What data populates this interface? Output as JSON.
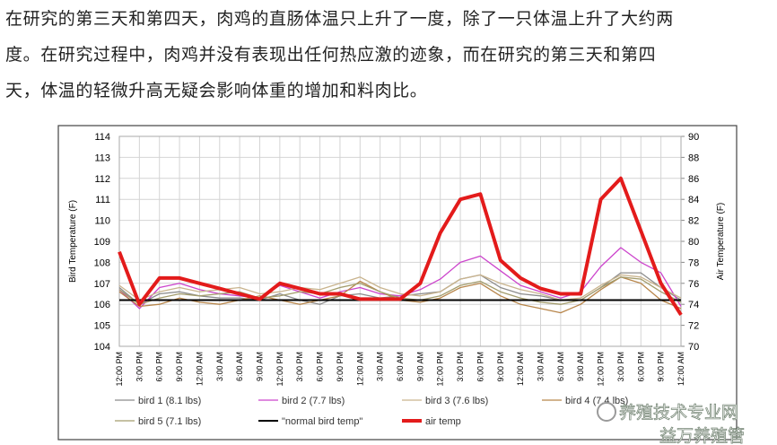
{
  "text": {
    "lines": [
      "在研究的第三天和第四天，肉鸡的直肠体温只上升了一度，除了一只体温上升了大约两",
      "度。在研究过程中，肉鸡并没有表现出任何热应激的迹象，而在研究的第三天和第四",
      "天，体温的轻微升高无疑会影响体重的增加和料肉比。"
    ]
  },
  "chart_data": {
    "type": "line",
    "y_label": "Bird Temperature (F)",
    "y2_label": "Air Temperature (F)",
    "categories": [
      "12:00 PM",
      "3:00 PM",
      "6:00 PM",
      "9:00 PM",
      "12:00 AM",
      "3:00 AM",
      "6:00 AM",
      "9:00 AM",
      "12:00 PM",
      "3:00 PM",
      "6:00 PM",
      "9:00 PM",
      "12:00 AM",
      "3:00 AM",
      "6:00 AM",
      "9:00 AM",
      "12:00 PM",
      "3:00 PM",
      "6:00 PM",
      "9:00 PM",
      "12:00 AM",
      "3:00 AM",
      "6:00 AM",
      "9:00 AM",
      "12:00 PM",
      "3:00 PM",
      "6:00 PM",
      "9:00 PM",
      "12:00 AM"
    ],
    "ylim": [
      104,
      114
    ],
    "yticks": [
      104,
      105,
      106,
      107,
      108,
      109,
      110,
      111,
      112,
      113,
      114
    ],
    "y2lim": [
      70,
      90
    ],
    "y2ticks": [
      70,
      72,
      74,
      76,
      78,
      80,
      82,
      84,
      86,
      88,
      90
    ],
    "series": [
      {
        "name": "bird 1 (8.1 lbs)",
        "color": "#8c8c8c",
        "width": 1.3,
        "values": [
          106.8,
          106.0,
          106.5,
          106.6,
          106.4,
          106.3,
          106.3,
          106.2,
          106.5,
          106.2,
          106.0,
          106.4,
          106.5,
          106.3,
          106.4,
          106.5,
          106.6,
          107.2,
          107.4,
          106.8,
          106.5,
          106.4,
          106.2,
          106.2,
          106.8,
          107.5,
          107.5,
          106.8,
          106.2
        ]
      },
      {
        "name": "bird 2 (7.7 lbs)",
        "color": "#cc44cc",
        "width": 1.3,
        "values": [
          106.7,
          105.8,
          106.8,
          107.0,
          106.7,
          106.5,
          106.4,
          106.3,
          106.9,
          106.6,
          106.3,
          106.6,
          106.8,
          106.5,
          106.4,
          106.7,
          107.2,
          108.0,
          108.3,
          107.6,
          106.9,
          106.6,
          106.3,
          106.6,
          107.8,
          108.7,
          108.0,
          107.5,
          105.9
        ]
      },
      {
        "name": "bird 3 (7.6 lbs)",
        "color": "#c9b48e",
        "width": 1.3,
        "values": [
          106.9,
          106.2,
          106.6,
          106.8,
          106.6,
          106.7,
          106.8,
          106.5,
          106.6,
          106.8,
          106.7,
          107.0,
          107.3,
          106.8,
          106.5,
          106.4,
          106.6,
          107.2,
          107.4,
          107.0,
          106.7,
          106.5,
          106.2,
          106.3,
          106.9,
          107.4,
          107.3,
          106.8,
          106.3
        ]
      },
      {
        "name": "bird 4 (7.4 lbs)",
        "color": "#b8864b",
        "width": 1.3,
        "values": [
          106.6,
          105.9,
          106.0,
          106.3,
          106.1,
          106.0,
          106.2,
          106.4,
          106.2,
          106.0,
          106.2,
          106.4,
          107.1,
          106.6,
          106.2,
          106.1,
          106.3,
          106.8,
          107.0,
          106.4,
          106.0,
          105.8,
          105.6,
          106.0,
          106.7,
          107.3,
          107.0,
          106.2,
          105.8
        ]
      },
      {
        "name": "bird 5 (7.1 lbs)",
        "color": "#a39c6c",
        "width": 1.3,
        "values": [
          106.7,
          106.0,
          106.3,
          106.5,
          106.4,
          106.5,
          106.6,
          106.3,
          106.4,
          106.6,
          106.5,
          106.8,
          107.0,
          106.6,
          106.3,
          106.2,
          106.4,
          106.9,
          107.1,
          106.6,
          106.3,
          106.1,
          106.0,
          106.2,
          106.8,
          107.3,
          107.2,
          106.6,
          106.1
        ]
      },
      {
        "name": "\"normal bird temp\"",
        "color": "#000000",
        "width": 2,
        "values": [
          106.2,
          106.2,
          106.2,
          106.2,
          106.2,
          106.2,
          106.2,
          106.2,
          106.2,
          106.2,
          106.2,
          106.2,
          106.2,
          106.2,
          106.2,
          106.2,
          106.2,
          106.2,
          106.2,
          106.2,
          106.2,
          106.2,
          106.2,
          106.2,
          106.2,
          106.2,
          106.2,
          106.2,
          106.2
        ]
      },
      {
        "name": "air temp",
        "color": "#e31b1b",
        "width": 4,
        "axis": "y2",
        "values": [
          79,
          74,
          76.5,
          76.5,
          76,
          75.5,
          75,
          74.5,
          76,
          75.5,
          75,
          75,
          74.5,
          74.5,
          74.5,
          76,
          80.8,
          84,
          84.5,
          78.2,
          76.5,
          75.5,
          75,
          75,
          84,
          86,
          81,
          76,
          73
        ]
      }
    ]
  },
  "watermark": [
    "养殖技术专业网",
    "益万养殖管"
  ]
}
